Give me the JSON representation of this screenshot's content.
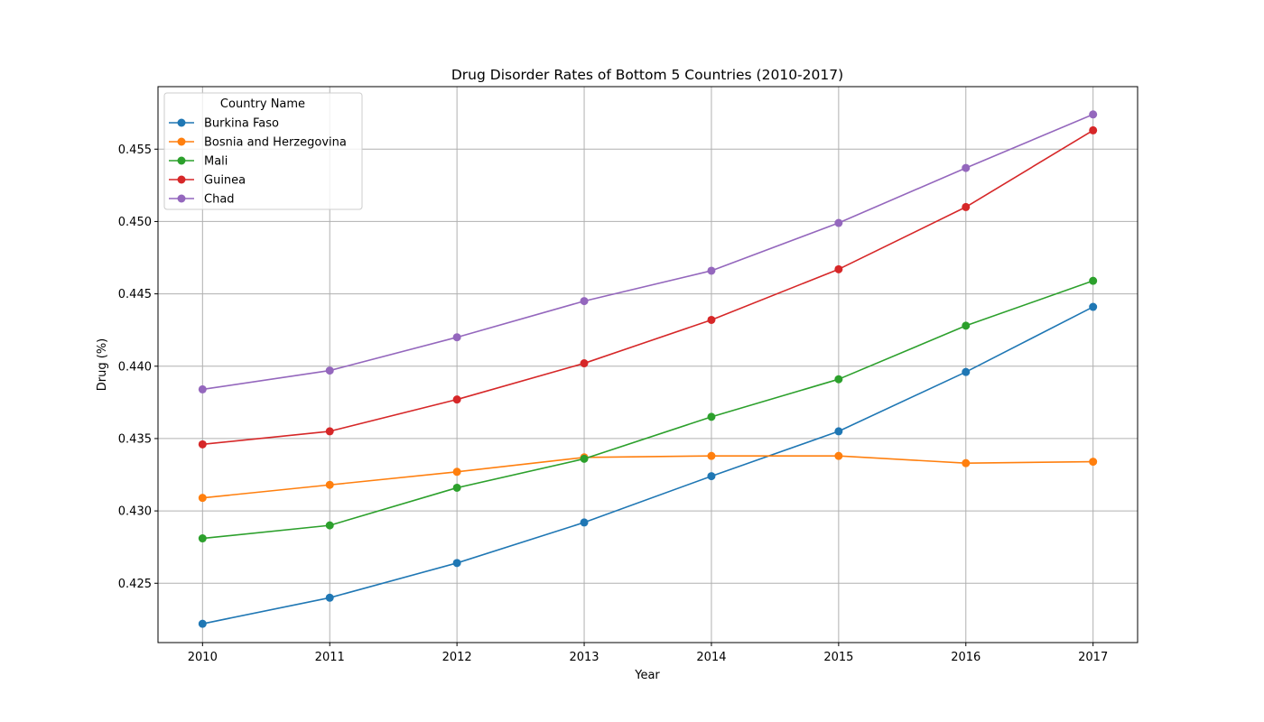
{
  "chart_data": {
    "type": "line",
    "title": "Drug Disorder Rates of Bottom 5 Countries (2010-2017)",
    "xlabel": "Year",
    "ylabel": "Drug (%)",
    "x": [
      2010,
      2011,
      2012,
      2013,
      2014,
      2015,
      2016,
      2017
    ],
    "x_ticks": [
      "2010",
      "2011",
      "2012",
      "2013",
      "2014",
      "2015",
      "2016",
      "2017"
    ],
    "xlim": [
      2009.65,
      2017.35
    ],
    "ylim": [
      0.4209,
      0.45932
    ],
    "y_ticks": [
      0.425,
      0.43,
      0.435,
      0.44,
      0.445,
      0.45,
      0.455
    ],
    "y_tick_labels": [
      "0.425",
      "0.430",
      "0.435",
      "0.440",
      "0.445",
      "0.450",
      "0.455"
    ],
    "grid": true,
    "marker": "circle",
    "legend": {
      "title": "Country Name",
      "placement": "top-left"
    },
    "series": [
      {
        "name": "Burkina Faso",
        "color": "#1f77b4",
        "values": [
          0.4222,
          0.424,
          0.4264,
          0.4292,
          0.4324,
          0.4355,
          0.4396,
          0.4441
        ]
      },
      {
        "name": "Bosnia and Herzegovina",
        "color": "#ff7f0e",
        "values": [
          0.4309,
          0.4318,
          0.4327,
          0.4337,
          0.4338,
          0.4338,
          0.4333,
          0.4334
        ]
      },
      {
        "name": "Mali",
        "color": "#2ca02c",
        "values": [
          0.4281,
          0.429,
          0.4316,
          0.4336,
          0.4365,
          0.4391,
          0.4428,
          0.4459
        ]
      },
      {
        "name": "Guinea",
        "color": "#d62728",
        "values": [
          0.4346,
          0.4355,
          0.4377,
          0.4402,
          0.4432,
          0.4467,
          0.451,
          0.4563
        ]
      },
      {
        "name": "Chad",
        "color": "#9467bd",
        "values": [
          0.4384,
          0.4397,
          0.442,
          0.4445,
          0.4466,
          0.4499,
          0.4537,
          0.4574
        ]
      }
    ]
  }
}
